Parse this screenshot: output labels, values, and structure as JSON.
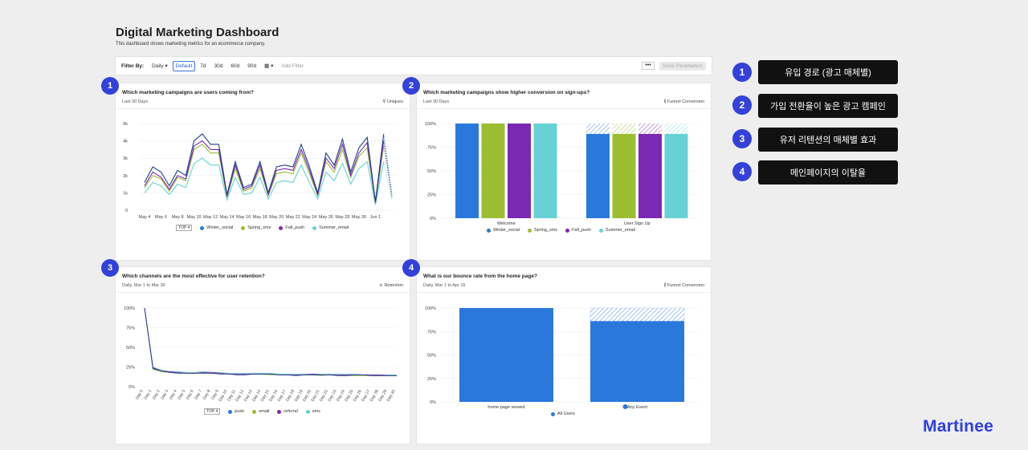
{
  "header": {
    "title": "Digital Marketing Dashboard",
    "subtitle": "This dashboard shows marketing metrics for an ecommerce company."
  },
  "filterbar": {
    "label": "Filter By:",
    "interval": "Daily",
    "ranges": [
      "Default",
      "7d",
      "30d",
      "60d",
      "90d"
    ],
    "add_filter": "Add Filter",
    "more": "•••",
    "save": "Save Parameters"
  },
  "panels": [
    {
      "badge": "1",
      "title": "Which marketing campaigns are users coming from?",
      "subtitle": "Last 30 Days",
      "tag": "Uniques"
    },
    {
      "badge": "2",
      "title": "Which marketing campaigns show higher conversion on sign-ups?",
      "subtitle": "Last 30 Days",
      "tag": "Funnel Conversion"
    },
    {
      "badge": "3",
      "title": "Which channels are the most effective for user retention?",
      "subtitle": "Daily, Mar 1 to Mar 30",
      "tag": "Retention"
    },
    {
      "badge": "4",
      "title": "What is our bounce rate from the home page?",
      "subtitle": "Daily, Mar 1 to Apr 15",
      "tag": "Funnel Conversion"
    }
  ],
  "legends": {
    "p1": {
      "top": "TOP 4",
      "items": [
        "Winter_social",
        "Spring_sms",
        "Fall_push",
        "Summer_email"
      ]
    },
    "p2": {
      "items": [
        "Winter_social",
        "Spring_sms",
        "Fall_push",
        "Summer_email"
      ]
    },
    "p3": {
      "top": "TOP 4",
      "items": [
        "push",
        "email",
        "referral",
        "sms"
      ]
    },
    "p4": {
      "items": [
        "All Users"
      ]
    }
  },
  "colors": {
    "blue": "#2b78dc",
    "green": "#9bbe31",
    "purple": "#7b28b4",
    "teal": "#67d2d6",
    "navy": "#1e3f8a",
    "badge": "#3341d9",
    "brand": "#2f3fe0"
  },
  "sidebar": [
    {
      "num": "1",
      "label": "유입 경로 (광고 매체별)"
    },
    {
      "num": "2",
      "label": "가입 전환율이 높은 광고 캠페인"
    },
    {
      "num": "3",
      "label": "유저 리텐션의 매체별 효과"
    },
    {
      "num": "4",
      "label": "메인페이지의 이탈율"
    }
  ],
  "brand": "Martinee",
  "chart_data": [
    {
      "type": "line",
      "title": "Which marketing campaigns are users coming from?",
      "x_ticks": [
        "May 4",
        "May 6",
        "May 8",
        "May 10",
        "May 12",
        "May 14",
        "May 16",
        "May 18",
        "May 20",
        "May 22",
        "May 24",
        "May 26",
        "May 28",
        "May 30",
        "Jun 1"
      ],
      "y_ticks": [
        "0",
        "1k",
        "2k",
        "3k",
        "4k",
        "5k"
      ],
      "ylim": [
        0,
        5000
      ],
      "series": [
        {
          "name": "Winter_social",
          "values": [
            1600,
            2500,
            2200,
            1400,
            2300,
            2000,
            4000,
            4400,
            3800,
            3800,
            900,
            2800,
            1300,
            1500,
            2800,
            1000,
            2500,
            2600,
            2500,
            3800,
            2500,
            1000,
            3300,
            2600,
            4100,
            2200,
            3600,
            4200,
            500,
            4400,
            900
          ]
        },
        {
          "name": "Spring_sms",
          "values": [
            1300,
            2000,
            1800,
            1100,
            1900,
            1700,
            3500,
            3800,
            3300,
            3300,
            750,
            2400,
            1100,
            1300,
            2400,
            850,
            2100,
            2200,
            2100,
            3300,
            2100,
            850,
            2800,
            2200,
            3500,
            1900,
            3100,
            3600,
            400,
            3700,
            750
          ]
        },
        {
          "name": "Fall_push",
          "values": [
            1400,
            2200,
            1900,
            1200,
            2000,
            1800,
            3700,
            4000,
            3500,
            3500,
            800,
            2600,
            1200,
            1400,
            2600,
            900,
            2300,
            2400,
            2300,
            3500,
            2300,
            900,
            3000,
            2400,
            3800,
            2000,
            3300,
            3900,
            450,
            4000,
            800
          ]
        },
        {
          "name": "Summer_email",
          "values": [
            1000,
            1600,
            1400,
            900,
            1500,
            1300,
            2700,
            3000,
            2600,
            2600,
            600,
            1900,
            900,
            1000,
            1900,
            650,
            1600,
            1700,
            1600,
            2600,
            1600,
            650,
            2200,
            1700,
            2700,
            1500,
            2400,
            2800,
            300,
            2800,
            600
          ]
        }
      ]
    },
    {
      "type": "bar",
      "title": "Which marketing campaigns show higher conversion on sign-ups?",
      "categories": [
        "Welcome",
        "User Sign Up"
      ],
      "y_ticks": [
        "0%",
        "25%",
        "50%",
        "75%",
        "100%"
      ],
      "ylim": [
        0,
        100
      ],
      "series": [
        {
          "name": "Winter_social",
          "values": [
            100,
            89
          ]
        },
        {
          "name": "Spring_sms",
          "values": [
            100,
            89
          ]
        },
        {
          "name": "Fall_push",
          "values": [
            100,
            89
          ]
        },
        {
          "name": "Summer_email",
          "values": [
            100,
            89
          ]
        }
      ]
    },
    {
      "type": "line",
      "title": "Which channels are the most effective for user retention?",
      "x_ticks": [
        "Day 0",
        "Day 1",
        "Day 2",
        "Day 3",
        "Day 4",
        "Day 5",
        "Day 6",
        "Day 7",
        "Day 8",
        "Day 9",
        "Day 10",
        "Day 11",
        "Day 12",
        "Day 13",
        "Day 14",
        "Day 15",
        "Day 16",
        "Day 17",
        "Day 18",
        "Day 19",
        "Day 20",
        "Day 21",
        "Day 22",
        "Day 23",
        "Day 24",
        "Day 25",
        "Day 26",
        "Day 27",
        "Day 28",
        "Day 29",
        "Day 30"
      ],
      "y_ticks": [
        "0%",
        "25%",
        "50%",
        "75%",
        "100%"
      ],
      "ylim": [
        0,
        100
      ],
      "series": [
        {
          "name": "push",
          "values": [
            100,
            23,
            20,
            18,
            17,
            17,
            17,
            17,
            17,
            16,
            16,
            15,
            15,
            16,
            16,
            16,
            15,
            15,
            14,
            15,
            15,
            15,
            15,
            14,
            14,
            15,
            15,
            14,
            14,
            14,
            14
          ]
        },
        {
          "name": "email",
          "values": [
            100,
            22,
            19,
            18,
            18,
            17,
            17,
            18,
            17,
            17,
            16,
            16,
            16,
            16,
            16,
            15,
            15,
            15,
            15,
            15,
            15,
            14,
            15,
            15,
            14,
            14,
            14,
            14,
            14,
            14,
            14
          ]
        },
        {
          "name": "referral",
          "values": [
            100,
            24,
            20,
            19,
            18,
            17,
            17,
            18,
            18,
            17,
            16,
            16,
            16,
            16,
            16,
            16,
            15,
            15,
            15,
            15,
            16,
            15,
            15,
            15,
            15,
            15,
            15,
            15,
            15,
            14,
            14
          ]
        },
        {
          "name": "sms",
          "values": [
            100,
            25,
            21,
            19,
            19,
            18,
            18,
            19,
            18,
            18,
            17,
            17,
            17,
            17,
            17,
            17,
            16,
            16,
            16,
            16,
            16,
            16,
            16,
            16,
            16,
            16,
            15,
            15,
            15,
            15,
            15
          ]
        }
      ]
    },
    {
      "type": "bar",
      "title": "What is our bounce rate from the home page?",
      "categories": [
        "home page viewed",
        "Any Event"
      ],
      "y_ticks": [
        "0%",
        "25%",
        "50%",
        "75%",
        "100%"
      ],
      "ylim": [
        0,
        100
      ],
      "series": [
        {
          "name": "All Users",
          "values": [
            100,
            86
          ]
        }
      ]
    }
  ]
}
